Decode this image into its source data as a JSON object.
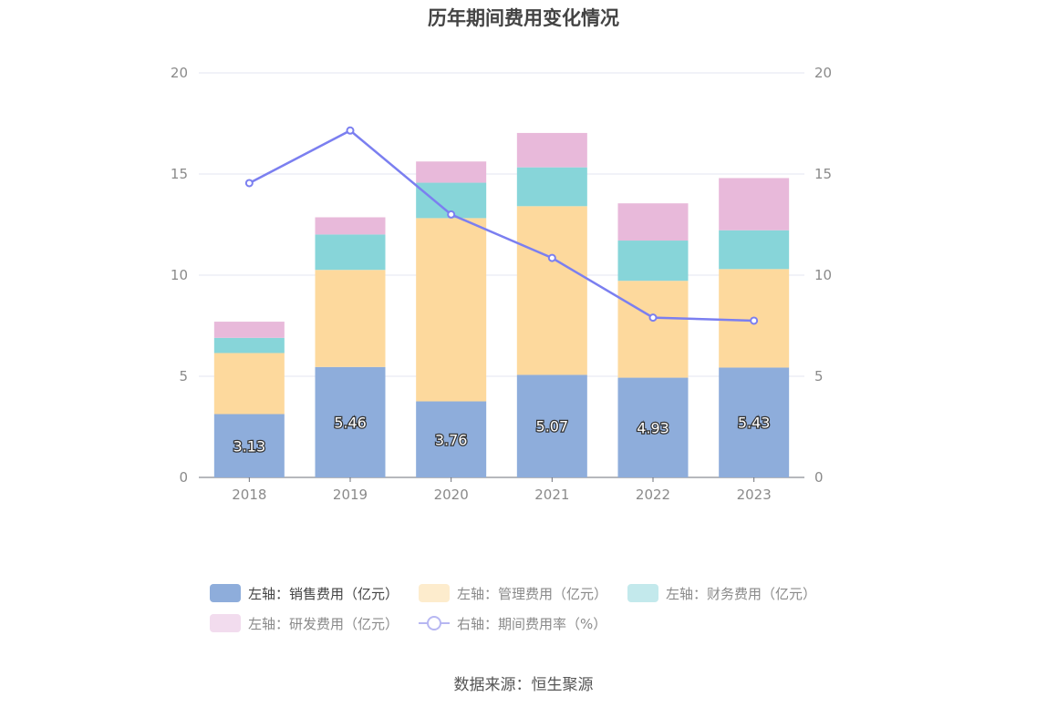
{
  "chart_data": {
    "type": "bar",
    "title": "历年期间费用变化情况",
    "categories": [
      "2018",
      "2019",
      "2020",
      "2021",
      "2022",
      "2023"
    ],
    "ylim_left": [
      0,
      20
    ],
    "ylim_right": [
      0,
      20
    ],
    "yticks": [
      0,
      5,
      10,
      15,
      20
    ],
    "stacked": true,
    "series": [
      {
        "name": "左轴：销售费用（亿元）",
        "axis": "left",
        "type": "bar",
        "color": "#8eaddb",
        "values": [
          3.13,
          5.46,
          3.76,
          5.07,
          4.93,
          5.43
        ],
        "labels_shown": true
      },
      {
        "name": "左轴：管理费用（亿元）",
        "axis": "left",
        "type": "bar",
        "color": "#fdd99d",
        "values": [
          3.02,
          4.8,
          9.06,
          8.34,
          4.79,
          4.87
        ]
      },
      {
        "name": "左轴：财务费用（亿元）",
        "axis": "left",
        "type": "bar",
        "color": "#87d5d9",
        "values": [
          0.75,
          1.75,
          1.75,
          1.92,
          1.99,
          1.92
        ]
      },
      {
        "name": "左轴：研发费用（亿元）",
        "axis": "left",
        "type": "bar",
        "color": "#e8b9da",
        "values": [
          0.8,
          0.85,
          1.05,
          1.7,
          1.84,
          2.58
        ]
      },
      {
        "name": "右轴：期间费用率（%）",
        "axis": "right",
        "type": "line",
        "color": "#7b7ff0",
        "values": [
          14.55,
          17.15,
          13.0,
          10.85,
          7.9,
          7.75
        ]
      }
    ],
    "legend_position": "bottom",
    "grid": true
  },
  "legend": {
    "rows": [
      [
        "左轴：销售费用（亿元）",
        "左轴：管理费用（亿元）",
        "左轴：财务费用（亿元）"
      ],
      [
        "左轴：研发费用（亿元）",
        "右轴：期间费用率（%）"
      ]
    ],
    "swatch_colors": [
      "#8eaddb",
      "#fdeccd",
      "#c3e9ec",
      "#f2dcee"
    ]
  },
  "source": "数据来源：恒生聚源"
}
